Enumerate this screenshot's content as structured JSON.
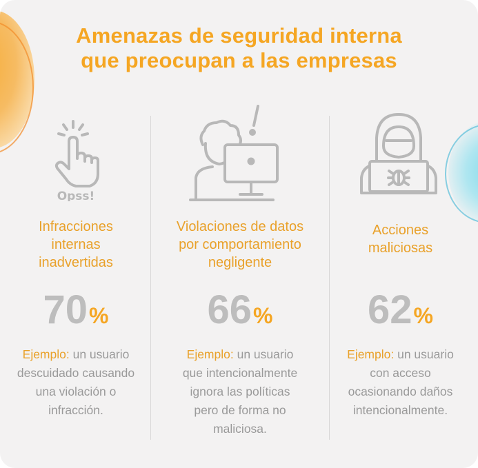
{
  "title_line1": "Amenazas de seguridad interna",
  "title_line2": "que preocupan a las empresas",
  "colors": {
    "accent": "#f5a623",
    "heading": "#e9a12a",
    "percent_gray": "#bdbdbd",
    "icon_gray": "#b8b8b8",
    "text_gray": "#9a9a9a"
  },
  "columns": [
    {
      "icon": "hand-tap-icon",
      "icon_caption": "Opss!",
      "heading_lines": [
        "Infracciones",
        "internas",
        "inadvertidas"
      ],
      "percent_value": "70",
      "percent_sign": "%",
      "example_label": "Ejemplo:",
      "example_lines": [
        "un usuario",
        "descuidado causando",
        "una violación o",
        "infracción."
      ]
    },
    {
      "icon": "person-computer-alert-icon",
      "heading_lines": [
        "Violaciones de datos",
        "por comportamiento",
        "negligente"
      ],
      "percent_value": "66",
      "percent_sign": "%",
      "example_label": "Ejemplo:",
      "example_lines": [
        "un usuario",
        "que intencionalmente",
        "ignora las políticas",
        "pero de forma no",
        "maliciosa."
      ]
    },
    {
      "icon": "hacker-laptop-bug-icon",
      "heading_lines": [
        "Acciones",
        "maliciosas"
      ],
      "percent_value": "62",
      "percent_sign": "%",
      "example_label": "Ejemplo:",
      "example_lines": [
        "un usuario",
        "con acceso",
        "ocasionando daños",
        "intencionalmente."
      ]
    }
  ]
}
